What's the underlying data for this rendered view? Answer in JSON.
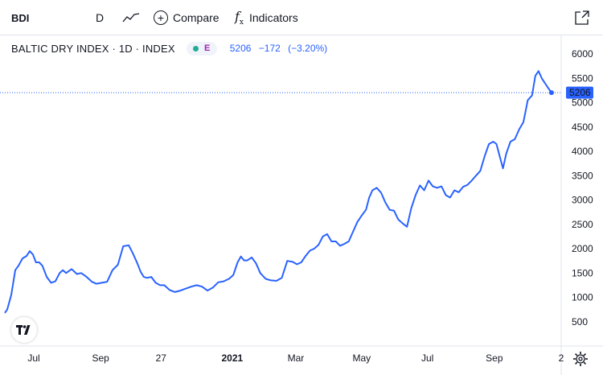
{
  "toolbar": {
    "symbol": "BDI",
    "interval": "D",
    "style_icon": "line-style-icon",
    "compare_label": "Compare",
    "indicators_label": "Indicators",
    "fullscreen_icon": "fullscreen-icon"
  },
  "legend": {
    "title": "BALTIC DRY INDEX · 1D · INDEX",
    "badge_letter": "E",
    "last": "5206",
    "change": "−172",
    "change_pct": "(−3.20%)"
  },
  "colors": {
    "line": "#2962ff",
    "price_label_bg": "#2962ff",
    "text": "#131722",
    "badge_dot": "#22ab94",
    "badge_letter": "#9c27b0"
  },
  "chart_data": {
    "type": "line",
    "ylim": [
      0,
      6250
    ],
    "y_ticks": [
      500,
      1000,
      1500,
      2000,
      2500,
      3000,
      3500,
      4000,
      4500,
      5000,
      5500,
      6000
    ],
    "x_ticks": [
      {
        "label": "Jul",
        "x": "2020-07-01"
      },
      {
        "label": "Sep",
        "x": "2020-09-01"
      },
      {
        "label": "27",
        "x": "2020-10-27"
      },
      {
        "label": "2021",
        "x": "2021-01-01",
        "bold": true
      },
      {
        "label": "Mar",
        "x": "2021-03-01"
      },
      {
        "label": "May",
        "x": "2021-05-01"
      },
      {
        "label": "Jul",
        "x": "2021-07-01"
      },
      {
        "label": "Sep",
        "x": "2021-09-01"
      },
      {
        "label": "2",
        "x": "2021-11-02"
      }
    ],
    "last_value": 5206,
    "last_label": "5206",
    "series": [
      {
        "x": [
          "2020-05-26",
          "2020-05-29",
          "2020-06-03",
          "2020-06-08",
          "2020-06-12",
          "2020-06-17",
          "2020-06-22",
          "2020-06-26",
          "2020-06-30",
          "2020-07-03",
          "2020-07-06",
          "2020-07-09",
          "2020-07-13",
          "2020-07-17",
          "2020-07-21",
          "2020-07-25",
          "2020-07-28",
          "2020-07-31",
          "2020-08-05",
          "2020-08-10",
          "2020-08-14",
          "2020-08-19",
          "2020-08-24",
          "2020-08-28",
          "2020-09-02",
          "2020-09-07",
          "2020-09-12",
          "2020-09-17",
          "2020-09-22",
          "2020-09-27",
          "2020-10-01",
          "2020-10-05",
          "2020-10-08",
          "2020-10-11",
          "2020-10-14",
          "2020-10-18",
          "2020-10-22",
          "2020-10-26",
          "2020-10-30",
          "2020-11-04",
          "2020-11-09",
          "2020-11-14",
          "2020-11-19",
          "2020-11-24",
          "2020-11-29",
          "2020-12-04",
          "2020-12-09",
          "2020-12-14",
          "2020-12-19",
          "2020-12-24",
          "2020-12-29",
          "2021-01-02",
          "2021-01-06",
          "2021-01-09",
          "2021-01-12",
          "2021-01-15",
          "2021-01-19",
          "2021-01-23",
          "2021-01-27",
          "2021-02-01",
          "2021-02-06",
          "2021-02-11",
          "2021-02-16",
          "2021-02-21",
          "2021-02-26",
          "2021-03-02",
          "2021-03-06",
          "2021-03-10",
          "2021-03-14",
          "2021-03-18",
          "2021-03-22",
          "2021-03-26",
          "2021-03-30",
          "2021-04-03",
          "2021-04-07",
          "2021-04-11",
          "2021-04-15",
          "2021-04-19",
          "2021-04-23",
          "2021-04-27",
          "2021-05-01",
          "2021-05-05",
          "2021-05-08",
          "2021-05-11",
          "2021-05-15",
          "2021-05-19",
          "2021-05-23",
          "2021-05-27",
          "2021-05-31",
          "2021-06-04",
          "2021-06-08",
          "2021-06-12",
          "2021-06-16",
          "2021-06-20",
          "2021-06-24",
          "2021-06-28",
          "2021-07-02",
          "2021-07-06",
          "2021-07-10",
          "2021-07-14",
          "2021-07-18",
          "2021-07-22",
          "2021-07-26",
          "2021-07-30",
          "2021-08-03",
          "2021-08-07",
          "2021-08-11",
          "2021-08-15",
          "2021-08-19",
          "2021-08-23",
          "2021-08-27",
          "2021-08-31",
          "2021-09-03",
          "2021-09-06",
          "2021-09-09",
          "2021-09-12",
          "2021-09-16",
          "2021-09-20",
          "2021-09-24",
          "2021-09-28",
          "2021-10-02",
          "2021-10-06",
          "2021-10-09",
          "2021-10-12",
          "2021-10-15",
          "2021-10-18",
          "2021-10-21",
          "2021-10-24"
        ],
        "values": [
          680,
          750,
          1050,
          1560,
          1650,
          1800,
          1850,
          1950,
          1880,
          1720,
          1720,
          1650,
          1420,
          1300,
          1330,
          1500,
          1560,
          1500,
          1580,
          1480,
          1500,
          1420,
          1320,
          1280,
          1300,
          1320,
          1560,
          1670,
          2050,
          2070,
          1900,
          1700,
          1530,
          1420,
          1400,
          1420,
          1300,
          1250,
          1250,
          1150,
          1110,
          1140,
          1180,
          1220,
          1250,
          1220,
          1140,
          1200,
          1310,
          1330,
          1380,
          1460,
          1720,
          1840,
          1760,
          1760,
          1820,
          1700,
          1500,
          1380,
          1350,
          1340,
          1400,
          1750,
          1730,
          1680,
          1720,
          1850,
          1960,
          2000,
          2080,
          2250,
          2300,
          2150,
          2150,
          2060,
          2100,
          2150,
          2350,
          2550,
          2680,
          2800,
          3050,
          3200,
          3250,
          3150,
          2950,
          2800,
          2780,
          2600,
          2520,
          2450,
          2830,
          3100,
          3300,
          3200,
          3400,
          3280,
          3250,
          3280,
          3100,
          3050,
          3200,
          3160,
          3270,
          3310,
          3400,
          3500,
          3600,
          3900,
          4150,
          4200,
          4150,
          3900,
          3650,
          3950,
          4200,
          4250,
          4450,
          4600,
          5050,
          5150,
          5550,
          5650,
          5500,
          5400,
          5300,
          5206
        ]
      }
    ]
  }
}
